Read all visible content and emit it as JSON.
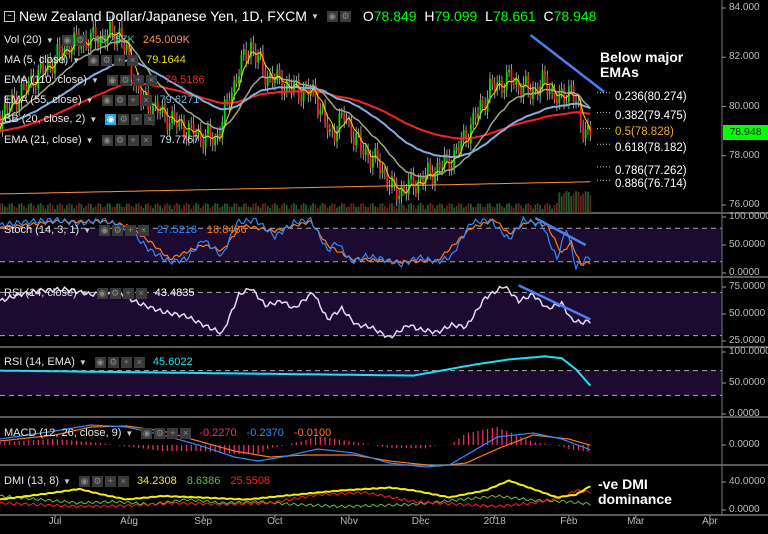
{
  "header": {
    "title": "New Zealand Dollar/Japanese Yen, 1D, FXCM",
    "open_label": "O",
    "open": "78.849",
    "high_label": "H",
    "high": "79.099",
    "low_label": "L",
    "low": "78.661",
    "close_label": "C",
    "close": "78.948"
  },
  "legend": {
    "vol": {
      "label": "Vol (20)",
      "v1": "46.257K",
      "v2": "245.009K"
    },
    "ma5": {
      "label": "MA (5, close)",
      "value": "79.1644"
    },
    "ema110": {
      "label": "EMA (110, close)",
      "value": "79.5186"
    },
    "ema55": {
      "label": "EMA (55, close)",
      "value": "79.6271"
    },
    "bb": {
      "label": "BB (20, close, 2)"
    },
    "ema21": {
      "label": "EMA (21, close)",
      "value": "79.7767"
    },
    "stoch": {
      "label": "Stoch (14, 3, 1)",
      "k": "27.5218",
      "d": "18.8486"
    },
    "rsi": {
      "label": "RSI (14, close)",
      "value": "43.4835"
    },
    "rsi_ema": {
      "label": "RSI (14, EMA)",
      "value": "45.6022"
    },
    "macd": {
      "label": "MACD (12, 26, close, 9)",
      "hist": "-0.2270",
      "macd": "-0.2370",
      "signal": "-0.0100"
    },
    "dmi": {
      "label": "DMI (13, 8)",
      "adx": "34.2308",
      "plus": "8.6386",
      "minus": "25.5508"
    }
  },
  "current_price": "78.948",
  "annotations": {
    "emas_note_1": "Below major",
    "emas_note_2": "EMAs",
    "dmi_note_1": "-ve DMI",
    "dmi_note_2": "dominance"
  },
  "fib_levels": [
    {
      "label": "0.236(80.274)",
      "price": 80.274,
      "color": "#ffffff"
    },
    {
      "label": "0.382(79.475)",
      "price": 79.475,
      "color": "#ffffff"
    },
    {
      "label": "0.5(78.828)",
      "price": 78.828,
      "color": "#f0b020"
    },
    {
      "label": "0.618(78.182)",
      "price": 78.182,
      "color": "#ffffff"
    },
    {
      "label": "0.786(77.262)",
      "price": 77.262,
      "color": "#ffffff"
    },
    {
      "label": "0.886(76.714)",
      "price": 76.714,
      "color": "#ffffff"
    }
  ],
  "colors": {
    "up": "#00e000",
    "down": "#ff1a1a",
    "ma5": "#e8e000",
    "ema110": "#ff2020",
    "ema55": "#7fb0e0",
    "ema21": "#a0a888",
    "trend": "#4a7ff0",
    "panel": "#1c0a30"
  },
  "chart_data": {
    "type": "candlestick",
    "title": "New Zealand Dollar/Japanese Yen, 1D, FXCM",
    "x_unit": "days since Jul 1 2017",
    "x_ticks": [
      {
        "label": "Jul",
        "day": 0
      },
      {
        "label": "Aug",
        "day": 31
      },
      {
        "label": "Sep",
        "day": 62
      },
      {
        "label": "Oct",
        "day": 92
      },
      {
        "label": "Nov",
        "day": 123
      },
      {
        "label": "Dec",
        "day": 153
      },
      {
        "label": "2018",
        "day": 184
      },
      {
        "label": "Feb",
        "day": 215
      },
      {
        "label": "Mar",
        "day": 243
      },
      {
        "label": "Apr",
        "day": 274
      }
    ],
    "price": {
      "ylim": [
        75.6,
        84.3
      ],
      "y_ticks": [
        "76.000",
        "78.000",
        "80.000",
        "82.000",
        "84.000"
      ],
      "y_tick_values": [
        76,
        78,
        80,
        82,
        84
      ],
      "close_keypoints": [
        [
          -23,
          79.6
        ],
        [
          -10,
          81.0
        ],
        [
          6,
          82.5
        ],
        [
          19,
          82.8
        ],
        [
          27,
          83.0
        ],
        [
          36,
          80.3
        ],
        [
          48,
          79.5
        ],
        [
          56,
          79.0
        ],
        [
          67,
          78.6
        ],
        [
          77,
          81.5
        ],
        [
          82,
          82.5
        ],
        [
          88,
          81.3
        ],
        [
          98,
          80.8
        ],
        [
          109,
          80.5
        ],
        [
          115,
          78.8
        ],
        [
          121,
          79.6
        ],
        [
          128,
          78.3
        ],
        [
          136,
          77.6
        ],
        [
          142,
          76.5
        ],
        [
          151,
          76.9
        ],
        [
          159,
          77.4
        ],
        [
          167,
          78.0
        ],
        [
          174,
          79.2
        ],
        [
          182,
          80.7
        ],
        [
          190,
          81.1
        ],
        [
          199,
          80.6
        ],
        [
          205,
          81.0
        ],
        [
          211,
          80.2
        ],
        [
          216,
          80.8
        ],
        [
          220,
          79.3
        ],
        [
          224,
          78.95
        ]
      ],
      "ema_seeds": {
        "ema110": 79.0,
        "ema55": 79.3,
        "ema21": 79.5
      },
      "trendline": [
        [
          199,
          82.9
        ],
        [
          229.7,
          80.6
        ]
      ]
    },
    "stoch": {
      "ylim": [
        0,
        100
      ],
      "y_ticks": [
        "100.0000",
        "50.0000",
        "0.0000"
      ],
      "y_tick_values": [
        100,
        50,
        0
      ],
      "bands": [
        80,
        20
      ],
      "k": [
        [
          -23,
          85
        ],
        [
          -15,
          90
        ],
        [
          0,
          95
        ],
        [
          10,
          88
        ],
        [
          20,
          95
        ],
        [
          30,
          80
        ],
        [
          40,
          40
        ],
        [
          48,
          20
        ],
        [
          55,
          25
        ],
        [
          62,
          60
        ],
        [
          70,
          30
        ],
        [
          76,
          90
        ],
        [
          84,
          95
        ],
        [
          92,
          65
        ],
        [
          100,
          90
        ],
        [
          107,
          95
        ],
        [
          114,
          40
        ],
        [
          118,
          55
        ],
        [
          124,
          20
        ],
        [
          130,
          30
        ],
        [
          137,
          25
        ],
        [
          145,
          15
        ],
        [
          152,
          28
        ],
        [
          160,
          20
        ],
        [
          166,
          30
        ],
        [
          174,
          90
        ],
        [
          182,
          95
        ],
        [
          190,
          60
        ],
        [
          196,
          95
        ],
        [
          204,
          85
        ],
        [
          210,
          25
        ],
        [
          214,
          80
        ],
        [
          218,
          10
        ],
        [
          222,
          25
        ],
        [
          224,
          27.5
        ]
      ],
      "d": [
        [
          -23,
          80
        ],
        [
          0,
          92
        ],
        [
          20,
          92
        ],
        [
          30,
          85
        ],
        [
          40,
          55
        ],
        [
          48,
          25
        ],
        [
          62,
          50
        ],
        [
          70,
          40
        ],
        [
          78,
          85
        ],
        [
          92,
          75
        ],
        [
          107,
          92
        ],
        [
          114,
          50
        ],
        [
          124,
          25
        ],
        [
          145,
          20
        ],
        [
          160,
          22
        ],
        [
          174,
          80
        ],
        [
          184,
          95
        ],
        [
          190,
          70
        ],
        [
          198,
          92
        ],
        [
          206,
          85
        ],
        [
          212,
          35
        ],
        [
          216,
          55
        ],
        [
          220,
          15
        ],
        [
          224,
          18.8
        ]
      ],
      "trendline": [
        [
          201,
          98
        ],
        [
          222,
          50
        ]
      ]
    },
    "rsi": {
      "ylim": [
        22,
        78
      ],
      "y_ticks": [
        "75.0000",
        "50.0000",
        "25.0000"
      ],
      "y_tick_values": [
        75,
        50,
        25
      ],
      "bands": [
        70,
        30
      ],
      "values": [
        [
          -23,
          62
        ],
        [
          -15,
          68
        ],
        [
          -5,
          72
        ],
        [
          5,
          73
        ],
        [
          15,
          68
        ],
        [
          25,
          71
        ],
        [
          35,
          60
        ],
        [
          45,
          52
        ],
        [
          55,
          48
        ],
        [
          62,
          40
        ],
        [
          70,
          32
        ],
        [
          77,
          68
        ],
        [
          82,
          74
        ],
        [
          88,
          58
        ],
        [
          95,
          62
        ],
        [
          100,
          55
        ],
        [
          108,
          70
        ],
        [
          114,
          45
        ],
        [
          120,
          55
        ],
        [
          126,
          40
        ],
        [
          132,
          38
        ],
        [
          140,
          28
        ],
        [
          148,
          40
        ],
        [
          152,
          36
        ],
        [
          160,
          33
        ],
        [
          166,
          40
        ],
        [
          172,
          38
        ],
        [
          180,
          65
        ],
        [
          188,
          76
        ],
        [
          194,
          62
        ],
        [
          200,
          68
        ],
        [
          206,
          55
        ],
        [
          212,
          60
        ],
        [
          216,
          45
        ],
        [
          220,
          42
        ],
        [
          224,
          43.5
        ]
      ],
      "trendline": [
        [
          194,
          76.5
        ],
        [
          224,
          45
        ]
      ]
    },
    "rsi_ema": {
      "ylim": [
        0,
        100
      ],
      "y_ticks": [
        "100.0000",
        "50.0000",
        "0.0000"
      ],
      "y_tick_values": [
        100,
        50,
        0
      ],
      "bands": [
        70,
        30
      ],
      "values": [
        [
          -23,
          78
        ],
        [
          0,
          84
        ],
        [
          20,
          87
        ],
        [
          40,
          89
        ],
        [
          55,
          90
        ],
        [
          62,
          85
        ],
        [
          70,
          55
        ],
        [
          80,
          40
        ],
        [
          90,
          30
        ],
        [
          100,
          22
        ],
        [
          112,
          13
        ],
        [
          122,
          10
        ],
        [
          130,
          20
        ],
        [
          138,
          50
        ],
        [
          148,
          70
        ],
        [
          158,
          74
        ],
        [
          166,
          76
        ],
        [
          174,
          72
        ],
        [
          182,
          55
        ],
        [
          190,
          40
        ],
        [
          200,
          25
        ],
        [
          212,
          15
        ],
        [
          220,
          12
        ],
        [
          224,
          10
        ]
      ]
    },
    "rsi_ema_right_segment": {
      "values": [
        [
          -23,
          70
        ],
        [
          150,
          62
        ],
        [
          176,
          80
        ],
        [
          190,
          88
        ],
        [
          205,
          93
        ],
        [
          212,
          90
        ],
        [
          218,
          72
        ],
        [
          224,
          45.6
        ]
      ]
    },
    "macd": {
      "ylim": [
        -1.4,
        1.4
      ],
      "y_ticks": [
        "0.0000"
      ],
      "y_tick_values": [
        0
      ],
      "macd": [
        [
          -23,
          0.3
        ],
        [
          0,
          0.7
        ],
        [
          15,
          1.0
        ],
        [
          30,
          0.9
        ],
        [
          45,
          0.5
        ],
        [
          60,
          0.0
        ],
        [
          75,
          -0.6
        ],
        [
          85,
          -0.8
        ],
        [
          95,
          -0.6
        ],
        [
          110,
          -0.2
        ],
        [
          125,
          -0.4
        ],
        [
          140,
          -0.9
        ],
        [
          155,
          -1.1
        ],
        [
          165,
          -1.0
        ],
        [
          175,
          -0.3
        ],
        [
          185,
          0.4
        ],
        [
          200,
          0.6
        ],
        [
          212,
          0.3
        ],
        [
          224,
          -0.24
        ]
      ],
      "signal": [
        [
          -23,
          0.2
        ],
        [
          0,
          0.5
        ],
        [
          15,
          0.9
        ],
        [
          30,
          0.95
        ],
        [
          45,
          0.7
        ],
        [
          60,
          0.2
        ],
        [
          75,
          -0.3
        ],
        [
          90,
          -0.6
        ],
        [
          105,
          -0.5
        ],
        [
          125,
          -0.5
        ],
        [
          140,
          -0.8
        ],
        [
          160,
          -1.05
        ],
        [
          172,
          -0.9
        ],
        [
          185,
          -0.2
        ],
        [
          200,
          0.5
        ],
        [
          215,
          0.3
        ],
        [
          224,
          -0.01
        ]
      ]
    },
    "dmi": {
      "ylim": [
        0,
        60
      ],
      "y_ticks": [
        "40.0000",
        "0.0000"
      ],
      "y_tick_values": [
        40,
        0
      ],
      "adx": [
        [
          -23,
          15
        ],
        [
          0,
          25
        ],
        [
          10,
          30
        ],
        [
          20,
          22
        ],
        [
          30,
          15
        ],
        [
          45,
          20
        ],
        [
          60,
          18
        ],
        [
          80,
          15
        ],
        [
          95,
          20
        ],
        [
          110,
          25
        ],
        [
          120,
          28
        ],
        [
          140,
          32
        ],
        [
          150,
          28
        ],
        [
          165,
          18
        ],
        [
          180,
          28
        ],
        [
          190,
          42
        ],
        [
          200,
          30
        ],
        [
          210,
          18
        ],
        [
          218,
          22
        ],
        [
          224,
          34.2
        ]
      ],
      "plus": [
        [
          -23,
          20
        ],
        [
          10,
          10
        ],
        [
          25,
          12
        ],
        [
          40,
          8
        ],
        [
          55,
          15
        ],
        [
          70,
          10
        ],
        [
          85,
          12
        ],
        [
          100,
          8
        ],
        [
          120,
          5
        ],
        [
          150,
          8
        ],
        [
          170,
          15
        ],
        [
          185,
          20
        ],
        [
          200,
          14
        ],
        [
          214,
          12
        ],
        [
          224,
          8.6
        ]
      ],
      "minus": [
        [
          -23,
          10
        ],
        [
          10,
          5
        ],
        [
          30,
          6
        ],
        [
          50,
          10
        ],
        [
          70,
          8
        ],
        [
          90,
          10
        ],
        [
          110,
          22
        ],
        [
          130,
          25
        ],
        [
          150,
          12
        ],
        [
          170,
          8
        ],
        [
          185,
          5
        ],
        [
          200,
          10
        ],
        [
          212,
          18
        ],
        [
          218,
          28
        ],
        [
          224,
          25.6
        ]
      ]
    }
  }
}
